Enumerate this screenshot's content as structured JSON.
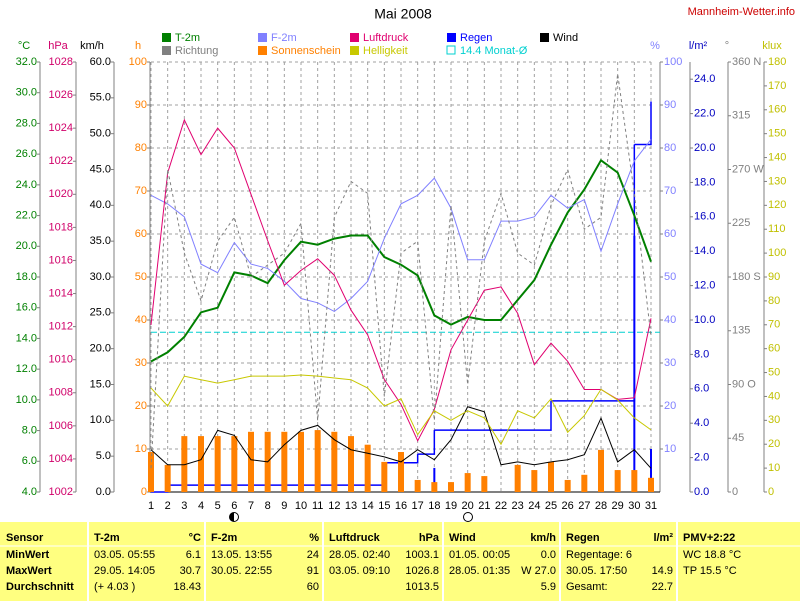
{
  "chart_data": {
    "type": "line",
    "title": "Mai 2008",
    "source": "Mannheim-Wetter.info",
    "x": [
      1,
      2,
      3,
      4,
      5,
      6,
      7,
      8,
      9,
      10,
      11,
      12,
      13,
      14,
      15,
      16,
      17,
      18,
      19,
      20,
      21,
      22,
      23,
      24,
      25,
      26,
      27,
      28,
      29,
      30,
      31
    ],
    "xlim": [
      1,
      31
    ],
    "grid": true,
    "axes": [
      {
        "label": "°C",
        "color": "#008000",
        "side": "left",
        "lim": [
          4,
          32
        ],
        "ticks": [
          {
            "value": 4,
            "label": "4.0"
          },
          {
            "value": 6,
            "label": "6.0"
          },
          {
            "value": 8,
            "label": "8.0"
          },
          {
            "value": 10,
            "label": "10.0"
          },
          {
            "value": 12,
            "label": "12.0"
          },
          {
            "value": 14,
            "label": "14.0"
          },
          {
            "value": 16,
            "label": "16.0"
          },
          {
            "value": 18,
            "label": "18.0"
          },
          {
            "value": 20,
            "label": "20.0"
          },
          {
            "value": 22,
            "label": "22.0"
          },
          {
            "value": 24,
            "label": "24.0"
          },
          {
            "value": 26,
            "label": "26.0"
          },
          {
            "value": 28,
            "label": "28.0"
          },
          {
            "value": 30,
            "label": "30.0"
          },
          {
            "value": 32,
            "label": "32.0"
          }
        ]
      },
      {
        "label": "hPa",
        "color": "#d0006a",
        "side": "left",
        "lim": [
          1002,
          1028
        ],
        "ticks": [
          1002,
          1004,
          1006,
          1008,
          1010,
          1012,
          1014,
          1016,
          1018,
          1020,
          1022,
          1024,
          1026,
          1028
        ]
      },
      {
        "label": "km/h",
        "color": "#000000",
        "side": "left",
        "lim": [
          0,
          60
        ],
        "ticks": [
          {
            "value": 0,
            "label": "0.0"
          },
          {
            "value": 5,
            "label": "5.0"
          },
          {
            "value": 10,
            "label": "10.0"
          },
          {
            "value": 15,
            "label": "15.0"
          },
          {
            "value": 20,
            "label": "20.0"
          },
          {
            "value": 25,
            "label": "25.0"
          },
          {
            "value": 30,
            "label": "30.0"
          },
          {
            "value": 35,
            "label": "35.0"
          },
          {
            "value": 40,
            "label": "40.0"
          },
          {
            "value": 45,
            "label": "45.0"
          },
          {
            "value": 50,
            "label": "50.0"
          },
          {
            "value": 55,
            "label": "55.0"
          },
          {
            "value": 60,
            "label": "60.0"
          }
        ]
      },
      {
        "label": "h",
        "color": "#ff8000",
        "side": "left",
        "lim": [
          0,
          100
        ],
        "ticks": [
          0,
          10,
          20,
          30,
          40,
          50,
          60,
          70,
          80,
          90,
          100
        ]
      },
      {
        "label": "%",
        "color": "#8080ff",
        "side": "right",
        "lim": [
          0,
          100
        ],
        "ticks": [
          10,
          20,
          30,
          40,
          50,
          60,
          70,
          80,
          90,
          100
        ]
      },
      {
        "label": "l/m²",
        "color": "#0000c0",
        "side": "right",
        "lim": [
          0,
          25
        ],
        "ticks": [
          {
            "value": 0,
            "label": "0.0"
          },
          {
            "value": 2,
            "label": "2.0"
          },
          {
            "value": 4,
            "label": "4.0"
          },
          {
            "value": 6,
            "label": "6.0"
          },
          {
            "value": 8,
            "label": "8.0"
          },
          {
            "value": 10,
            "label": "10.0"
          },
          {
            "value": 12,
            "label": "12.0"
          },
          {
            "value": 14,
            "label": "14.0"
          },
          {
            "value": 16,
            "label": "16.0"
          },
          {
            "value": 18,
            "label": "18.0"
          },
          {
            "value": 20,
            "label": "20.0"
          },
          {
            "value": 22,
            "label": "22.0"
          },
          {
            "value": 24,
            "label": "24.0"
          }
        ]
      },
      {
        "label": "°",
        "color": "#808080",
        "side": "right",
        "lim": [
          0,
          360
        ],
        "ticks": [
          0,
          45,
          {
            "value": 90,
            "label": "90 O"
          },
          135,
          {
            "value": 180,
            "label": "180 S"
          },
          225,
          {
            "value": 270,
            "label": "270 W"
          },
          315,
          {
            "value": 360,
            "label": "360 N"
          }
        ]
      },
      {
        "label": "klux",
        "color": "#c0c000",
        "side": "right",
        "lim": [
          0,
          180
        ],
        "ticks": [
          0,
          10,
          20,
          30,
          40,
          50,
          60,
          70,
          80,
          90,
          100,
          110,
          120,
          130,
          140,
          150,
          160,
          170,
          180
        ]
      }
    ],
    "series": [
      {
        "name": "T-2m",
        "color": "#008000",
        "axis": 0,
        "kind": "line",
        "line_width": 2,
        "values": [
          12.5,
          13.1,
          14.1,
          15.7,
          16.0,
          18.3,
          18.1,
          17.6,
          19.1,
          20.3,
          20.1,
          20.5,
          20.7,
          20.7,
          19.3,
          18.8,
          18.1,
          15.5,
          14.9,
          15.4,
          15.2,
          15.2,
          16.5,
          17.8,
          20.1,
          22.2,
          23.7,
          25.6,
          24.8,
          22.0,
          19.0
        ]
      },
      {
        "name": "F-2m",
        "color": "#8080ff",
        "axis": 4,
        "kind": "line",
        "values": [
          69,
          67,
          64,
          53,
          51,
          58,
          53,
          52,
          49,
          45,
          44,
          42,
          45,
          49,
          59,
          67,
          69,
          73,
          66,
          54,
          54,
          63,
          63,
          64,
          69,
          66,
          68,
          56,
          67,
          77,
          82
        ]
      },
      {
        "name": "Luftdruck",
        "color": "#e0006f",
        "axis": 1,
        "kind": "line",
        "values": [
          1012.1,
          1021.3,
          1024.5,
          1022.4,
          1024.0,
          1022.8,
          1020.0,
          1017.2,
          1014.5,
          1015.4,
          1016.1,
          1015.1,
          1013.0,
          1011.5,
          1008.8,
          1007.3,
          1005.1,
          1007.0,
          1010.6,
          1012.4,
          1014.2,
          1014.4,
          1012.8,
          1009.7,
          1011.0,
          1009.9,
          1008.2,
          1008.2,
          1007.6,
          1007.7,
          1012.5
        ]
      },
      {
        "name": "Regen",
        "color": "#0000ff",
        "axis": 5,
        "kind": "bar",
        "cumulative": true,
        "values": [
          0,
          0.4,
          0,
          0,
          0,
          0,
          0,
          0,
          0,
          0,
          0,
          0,
          0,
          0,
          1.3,
          0,
          0.5,
          1.4,
          0,
          0,
          0,
          0,
          0,
          0,
          1.7,
          0,
          0,
          0,
          0,
          14.9,
          2.5
        ]
      },
      {
        "name": "Wind",
        "color": "#000000",
        "axis": 2,
        "kind": "line",
        "values": [
          5.9,
          3.8,
          3.8,
          4.5,
          8.6,
          7.9,
          4.5,
          4.2,
          6.6,
          8.6,
          9.3,
          7.3,
          5.9,
          5.4,
          4.9,
          4.2,
          5.9,
          4.5,
          7.3,
          11.9,
          11.2,
          3.8,
          4.2,
          3.8,
          4.2,
          4.5,
          5.2,
          10.3,
          4.2,
          5.9,
          3.3
        ]
      },
      {
        "name": "Richtung",
        "color": "#808080",
        "axis": 6,
        "kind": "line",
        "dash": true,
        "values": [
          20,
          270,
          200,
          160,
          210,
          230,
          180,
          190,
          200,
          225,
          60,
          230,
          260,
          250,
          80,
          200,
          210,
          60,
          240,
          90,
          210,
          250,
          200,
          190,
          240,
          270,
          220,
          230,
          350,
          250,
          130
        ]
      },
      {
        "name": "Sonnenschein",
        "color": "#ff8000",
        "axis": 3,
        "kind": "bar",
        "values": [
          9.3,
          6.3,
          13,
          13,
          13,
          13,
          14,
          14,
          14,
          14,
          14.4,
          14,
          13,
          11,
          7,
          9.3,
          2.8,
          2.3,
          2.3,
          4.4,
          3.7,
          0,
          6.3,
          5.1,
          7,
          2.8,
          4,
          9.8,
          5.1,
          5.1,
          3.3
        ]
      },
      {
        "name": "Helligkeit",
        "color": "#c8c800",
        "axis": 7,
        "kind": "line",
        "values": [
          43.5,
          36,
          48.5,
          47,
          45.6,
          47,
          48.5,
          48.5,
          48.5,
          49,
          48.5,
          47.7,
          47,
          43.5,
          36,
          39,
          24,
          34,
          30,
          34,
          31,
          20,
          34,
          31,
          39,
          25,
          32,
          43,
          38.5,
          31,
          26
        ]
      }
    ],
    "mean_line": {
      "label": "14.4 Monat-Ø",
      "value": 14.4,
      "axis": 0,
      "color": "#00d0d0"
    }
  },
  "table": {
    "rows": [
      [
        [
          "Sensor"
        ],
        [
          "T-2m",
          "°C"
        ],
        [
          "F-2m",
          "%"
        ],
        [
          "Luftdruck",
          "hPa"
        ],
        [
          "Wind",
          "km/h"
        ],
        [
          "Regen",
          "l/m²"
        ],
        [
          "PMV+2:22"
        ]
      ],
      [
        [
          "MinWert"
        ],
        [
          "03.05.  05:55",
          "6.1"
        ],
        [
          "13.05.  13:55",
          "24"
        ],
        [
          "28.05.  02:40",
          "1003.1"
        ],
        [
          "01.05.  00:05",
          "0.0"
        ],
        [
          "Regentage: 6"
        ],
        [
          "WC 18.8 °C"
        ]
      ],
      [
        [
          "MaxWert"
        ],
        [
          "29.05.  14:05",
          "30.7"
        ],
        [
          "30.05.  22:55",
          "91"
        ],
        [
          "03.05.  09:10",
          "1026.8"
        ],
        [
          "28.05.  01:35",
          "W 27.0"
        ],
        [
          "30.05.  17:50",
          "14.9"
        ],
        [
          "TP 15.5 °C"
        ]
      ],
      [
        [
          "Durchschnitt"
        ],
        [
          "(+ 4.03 )",
          "18.43"
        ],
        [
          "60"
        ],
        [
          "1013.5"
        ],
        [
          "5.9"
        ],
        [
          "Gesamt:",
          "22.7"
        ]
      ]
    ]
  }
}
